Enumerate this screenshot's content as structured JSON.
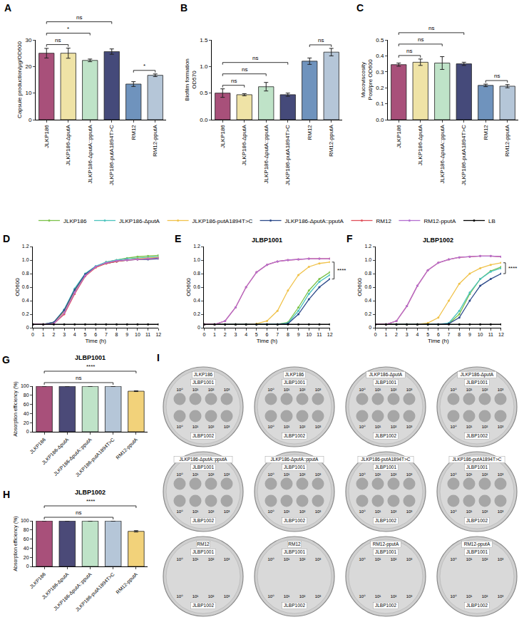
{
  "chart_data": [
    {
      "panel": "A",
      "type": "bar",
      "ylabel": "Capsule production/μg/OD600",
      "categories": [
        "JLKP186",
        "JLKP186-ΔputA",
        "JLKP186-ΔputA::pputA",
        "JLKP186-putA1894T>C",
        "RM12",
        "RM12-pputA"
      ],
      "values": [
        25.0,
        25.0,
        22.3,
        25.6,
        13.4,
        16.7
      ],
      "error": [
        1.8,
        1.9,
        0.5,
        1.0,
        0.9,
        0.5
      ],
      "colors": [
        "#a8507a",
        "#efe3a6",
        "#bfe3c8",
        "#454a7a",
        "#6f93bd",
        "#b5c6d8"
      ],
      "ylim": [
        0,
        30
      ],
      "yticks": [
        0,
        10,
        20,
        30
      ],
      "significance": [
        {
          "groups": [
            "JLKP186",
            "JLKP186-ΔputA"
          ],
          "label": "ns"
        },
        {
          "groups": [
            "JLKP186",
            "JLKP186-ΔputA::pputA"
          ],
          "label": "*"
        },
        {
          "groups": [
            "JLKP186",
            "JLKP186-putA1894T>C"
          ],
          "label": "ns"
        },
        {
          "groups": [
            "RM12",
            "RM12-pputA"
          ],
          "label": "*"
        }
      ]
    },
    {
      "panel": "B",
      "type": "bar",
      "ylabel": [
        "Biofilm formation",
        "OD570"
      ],
      "categories": [
        "JLKP186",
        "JLKP186-ΔputA",
        "JLKP186-ΔputA::pputA",
        "JLKP186-putA1894T>C",
        "RM12",
        "RM12-pputA"
      ],
      "values": [
        0.5,
        0.47,
        0.62,
        0.47,
        1.1,
        1.27
      ],
      "error": [
        0.08,
        0.02,
        0.08,
        0.03,
        0.06,
        0.07
      ],
      "colors": [
        "#a8507a",
        "#efe3a6",
        "#bfe3c8",
        "#454a7a",
        "#6f93bd",
        "#b5c6d8"
      ],
      "ylim": [
        0,
        1.5
      ],
      "yticks": [
        {
          "value": 0,
          "label": "0.0"
        },
        0.5,
        {
          "value": 1,
          "label": "1.0"
        },
        1.5
      ],
      "significance": [
        {
          "groups": [
            "JLKP186",
            "JLKP186-ΔputA"
          ],
          "label": "ns"
        },
        {
          "groups": [
            "JLKP186",
            "JLKP186-ΔputA::pputA"
          ],
          "label": "ns"
        },
        {
          "groups": [
            "JLKP186",
            "JLKP186-putA1894T>C"
          ],
          "label": "ns"
        },
        {
          "groups": [
            "RM12",
            "RM12-pputA"
          ],
          "label": "ns"
        }
      ]
    },
    {
      "panel": "C",
      "type": "bar",
      "ylabel": [
        "Mucoviscosity",
        "Post/pre OD600"
      ],
      "categories": [
        "JLKP186",
        "JLKP186-ΔputA",
        "JLKP186-ΔputA::pputA",
        "JLKP186-putA1894T>C",
        "RM12",
        "RM12-pputA"
      ],
      "values": [
        0.345,
        0.36,
        0.355,
        0.35,
        0.215,
        0.21
      ],
      "error": [
        0.01,
        0.02,
        0.04,
        0.01,
        0.008,
        0.01
      ],
      "colors": [
        "#a8507a",
        "#efe3a6",
        "#bfe3c8",
        "#454a7a",
        "#6f93bd",
        "#b5c6d8"
      ],
      "ylim": [
        0,
        0.5
      ],
      "yticks": [
        {
          "value": 0,
          "label": "0.0"
        },
        0.1,
        0.2,
        0.3,
        0.4,
        0.5
      ],
      "significance": [
        {
          "groups": [
            "JLKP186",
            "JLKP186-ΔputA"
          ],
          "label": "ns"
        },
        {
          "groups": [
            "JLKP186",
            "JLKP186-ΔputA::pputA"
          ],
          "label": "ns"
        },
        {
          "groups": [
            "JLKP186",
            "JLKP186-putA1894T>C"
          ],
          "label": "ns"
        },
        {
          "groups": [
            "RM12",
            "RM12-pputA"
          ],
          "label": "ns"
        }
      ]
    },
    {
      "panel": "D",
      "type": "line",
      "xlabel": "Time (h)",
      "ylabel": "OD600",
      "x": [
        0,
        1,
        2,
        3,
        4,
        5,
        6,
        7,
        8,
        9,
        10,
        11,
        12
      ],
      "xlim": [
        0,
        12
      ],
      "xticks": [
        0,
        1,
        2,
        3,
        4,
        5,
        6,
        7,
        8,
        9,
        10,
        11,
        12
      ],
      "ylim": [
        0,
        1.2
      ],
      "yticks": [
        0,
        0.2,
        0.4,
        0.6,
        0.8,
        {
          "value": 1,
          "label": "1.0"
        },
        1.2
      ],
      "series": [
        {
          "name": "JLKP186",
          "color": "#7cc24a",
          "values": [
            0.05,
            0.05,
            0.08,
            0.25,
            0.55,
            0.78,
            0.9,
            0.97,
            1.0,
            1.03,
            1.05,
            1.06,
            1.07
          ]
        },
        {
          "name": "JLKP186-ΔputA",
          "color": "#4cc3bd",
          "values": [
            0.05,
            0.05,
            0.08,
            0.27,
            0.58,
            0.8,
            0.91,
            0.97,
            1.0,
            1.02,
            1.03,
            1.04,
            1.05
          ]
        },
        {
          "name": "JLKP186-putA1894T>C",
          "color": "#f0c24a",
          "values": [
            0.05,
            0.05,
            0.07,
            0.24,
            0.53,
            0.77,
            0.89,
            0.95,
            0.98,
            1.0,
            1.02,
            1.03,
            1.04
          ]
        },
        {
          "name": "JLKP186-ΔputA::pputA",
          "color": "#2d4a8a",
          "values": [
            0.05,
            0.05,
            0.08,
            0.26,
            0.56,
            0.79,
            0.9,
            0.95,
            0.98,
            1.0,
            1.01,
            1.01,
            1.02
          ]
        },
        {
          "name": "RM12",
          "color": "#e0505a",
          "values": [
            0.05,
            0.05,
            0.06,
            0.2,
            0.5,
            0.76,
            0.89,
            0.95,
            0.98,
            1.0,
            1.01,
            1.02,
            1.03
          ]
        },
        {
          "name": "RM12-pputA",
          "color": "#b36fd0",
          "values": [
            0.05,
            0.05,
            0.06,
            0.22,
            0.52,
            0.77,
            0.9,
            0.96,
            0.99,
            1.0,
            1.01,
            1.02,
            1.03
          ]
        },
        {
          "name": "LB",
          "color": "#000000",
          "values": [
            0.05,
            0.05,
            0.05,
            0.05,
            0.05,
            0.05,
            0.05,
            0.05,
            0.05,
            0.05,
            0.05,
            0.05,
            0.05
          ]
        }
      ]
    },
    {
      "panel": "E",
      "type": "line",
      "title": "JLBP1001",
      "xlabel": "Time (h)",
      "ylabel": "OD600",
      "legend": "top",
      "x": [
        0,
        1,
        2,
        3,
        4,
        5,
        6,
        7,
        8,
        9,
        10,
        11,
        12
      ],
      "xlim": [
        0,
        12
      ],
      "xticks": [
        0,
        1,
        2,
        3,
        4,
        5,
        6,
        7,
        8,
        9,
        10,
        11,
        12
      ],
      "ylim": [
        0,
        1.2
      ],
      "yticks": [
        0,
        0.2,
        0.4,
        0.6,
        0.8,
        {
          "value": 1,
          "label": "1.0"
        },
        1.2
      ],
      "series": [
        {
          "name": "JLKP186",
          "color": "#7cc24a",
          "values": [
            0.05,
            0.05,
            0.05,
            0.05,
            0.05,
            0.05,
            0.05,
            0.05,
            0.08,
            0.3,
            0.55,
            0.72,
            0.82
          ]
        },
        {
          "name": "JLKP186-ΔputA",
          "color": "#4cc3bd",
          "values": [
            0.05,
            0.05,
            0.05,
            0.05,
            0.05,
            0.05,
            0.05,
            0.05,
            0.07,
            0.25,
            0.5,
            0.68,
            0.78
          ]
        },
        {
          "name": "JLKP186-putA1894T>C",
          "color": "#f0c24a",
          "values": [
            0.05,
            0.05,
            0.05,
            0.05,
            0.05,
            0.06,
            0.1,
            0.25,
            0.55,
            0.78,
            0.9,
            0.95,
            0.97
          ]
        },
        {
          "name": "JLKP186-ΔputA::pputA",
          "color": "#2d4a8a",
          "values": [
            0.05,
            0.05,
            0.05,
            0.05,
            0.05,
            0.05,
            0.05,
            0.05,
            0.06,
            0.2,
            0.42,
            0.6,
            0.72
          ]
        },
        {
          "name": "RM12",
          "color": "#e0505a",
          "values": [
            0.05,
            0.05,
            0.1,
            0.3,
            0.6,
            0.82,
            0.93,
            0.98,
            1.0,
            1.01,
            1.02,
            1.02,
            1.02
          ]
        },
        {
          "name": "RM12-pputA",
          "color": "#b36fd0",
          "values": [
            0.05,
            0.05,
            0.1,
            0.3,
            0.6,
            0.82,
            0.93,
            0.98,
            1.0,
            1.01,
            1.02,
            1.02,
            1.02
          ]
        },
        {
          "name": "LB",
          "color": "#000000",
          "values": [
            0.05,
            0.05,
            0.05,
            0.05,
            0.05,
            0.05,
            0.05,
            0.05,
            0.05,
            0.05,
            0.05,
            0.05,
            0.05
          ]
        }
      ],
      "significance": [
        {
          "series": [
            "JLKP186-putA1894T>C",
            "JLKP186-ΔputA::pputA"
          ],
          "label": "****"
        }
      ]
    },
    {
      "panel": "F",
      "type": "line",
      "title": "JLBP1002",
      "xlabel": "Time (h)",
      "ylabel": "OD600",
      "x": [
        0,
        1,
        2,
        3,
        4,
        5,
        6,
        7,
        8,
        9,
        10,
        11,
        12
      ],
      "xlim": [
        0,
        12
      ],
      "xticks": [
        0,
        1,
        2,
        3,
        4,
        5,
        6,
        7,
        8,
        9,
        10,
        11,
        12
      ],
      "ylim": [
        0,
        1.2
      ],
      "yticks": [
        0,
        0.2,
        0.4,
        0.6,
        0.8,
        {
          "value": 1,
          "label": "1.0"
        },
        1.2
      ],
      "series": [
        {
          "name": "JLKP186",
          "color": "#7cc24a",
          "values": [
            0.05,
            0.05,
            0.05,
            0.05,
            0.05,
            0.05,
            0.05,
            0.06,
            0.2,
            0.5,
            0.72,
            0.84,
            0.9
          ]
        },
        {
          "name": "JLKP186-ΔputA",
          "color": "#4cc3bd",
          "values": [
            0.05,
            0.05,
            0.05,
            0.05,
            0.05,
            0.05,
            0.05,
            0.07,
            0.25,
            0.52,
            0.72,
            0.83,
            0.88
          ]
        },
        {
          "name": "JLKP186-putA1894T>C",
          "color": "#f0c24a",
          "values": [
            0.05,
            0.05,
            0.05,
            0.05,
            0.05,
            0.07,
            0.15,
            0.4,
            0.65,
            0.8,
            0.88,
            0.93,
            0.96
          ]
        },
        {
          "name": "JLKP186-ΔputA::pputA",
          "color": "#2d4a8a",
          "values": [
            0.05,
            0.05,
            0.05,
            0.05,
            0.05,
            0.05,
            0.05,
            0.06,
            0.15,
            0.4,
            0.62,
            0.72,
            0.8
          ]
        },
        {
          "name": "RM12",
          "color": "#e0505a",
          "values": [
            0.05,
            0.05,
            0.1,
            0.32,
            0.62,
            0.85,
            0.96,
            1.01,
            1.04,
            1.05,
            1.06,
            1.06,
            1.05
          ]
        },
        {
          "name": "RM12-pputA",
          "color": "#b36fd0",
          "values": [
            0.05,
            0.05,
            0.1,
            0.32,
            0.62,
            0.85,
            0.96,
            1.01,
            1.04,
            1.05,
            1.06,
            1.06,
            1.05
          ]
        },
        {
          "name": "LB",
          "color": "#000000",
          "values": [
            0.05,
            0.05,
            0.05,
            0.05,
            0.05,
            0.05,
            0.05,
            0.05,
            0.05,
            0.05,
            0.05,
            0.05,
            0.05
          ]
        }
      ],
      "significance": [
        {
          "series": [
            "JLKP186-putA1894T>C",
            "JLKP186-ΔputA::pputA"
          ],
          "label": "****"
        }
      ]
    },
    {
      "panel": "G",
      "type": "bar",
      "title": "JLBP1001",
      "ylabel": "Absorption efficiency (%)",
      "categories": [
        "JLKP186",
        "JLKP186-ΔputA",
        "JLKP186-ΔputA::pputA",
        "JLKP186-putA1894T>C",
        "RM12-pputA"
      ],
      "values": [
        99.9,
        99.8,
        99.7,
        99.7,
        89.0
      ],
      "error": [
        0.1,
        0.1,
        0.2,
        0.2,
        0.8
      ],
      "colors": [
        "#a8507a",
        "#4b4a78",
        "#bfe3c8",
        "#b5c6d8",
        "#f2d27a"
      ],
      "ylim": [
        0,
        100
      ],
      "yticks": [
        0,
        20,
        40,
        60,
        80,
        100
      ],
      "significance": [
        {
          "groups": [
            "JLKP186",
            "JLKP186-putA1894T>C"
          ],
          "label": "ns"
        },
        {
          "groups": [
            "JLKP186",
            "RM12-pputA"
          ],
          "label": "****"
        }
      ]
    },
    {
      "panel": "H",
      "type": "bar",
      "title": "JLBP1002",
      "ylabel": "Absorption efficiency (%)",
      "categories": [
        "JLKP186",
        "JLKP186-ΔputA",
        "JLKP186-ΔputA::pputA",
        "JLKP186-putA1894T>C",
        "RM12-pputA"
      ],
      "values": [
        99.9,
        99.7,
        99.5,
        99.6,
        77.0
      ],
      "error": [
        0.1,
        0.2,
        0.4,
        0.2,
        1.5
      ],
      "colors": [
        "#a8507a",
        "#4b4a78",
        "#bfe3c8",
        "#b5c6d8",
        "#f2d27a"
      ],
      "ylim": [
        0,
        100
      ],
      "yticks": [
        0,
        20,
        40,
        60,
        80,
        100
      ],
      "significance": [
        {
          "groups": [
            "JLKP186",
            "JLKP186-putA1894T>C"
          ],
          "label": "ns"
        },
        {
          "groups": [
            "JLKP186",
            "RM12-pputA"
          ],
          "label": "****"
        }
      ]
    }
  ],
  "panel_I": {
    "panel": "I",
    "dilutions": [
      "10⁰",
      "10¹",
      "10²",
      "10³"
    ],
    "plates": [
      {
        "strain": "JLKP186",
        "top": "JLBP1001",
        "bottom": "JLBP1002",
        "lysis": true
      },
      {
        "strain": "JLKP186",
        "top": "JLBP1001",
        "bottom": "JLBP1002",
        "lysis": true
      },
      {
        "strain": "JLKP186-ΔputA",
        "top": "JLBP1001",
        "bottom": "JLBP1002",
        "lysis": true
      },
      {
        "strain": "JLKP186-ΔputA",
        "top": "JLBP1001",
        "bottom": "JLBP1002",
        "lysis": true
      },
      {
        "strain": "JLKP186-ΔputA::pputA",
        "top": "JLBP1001",
        "bottom": "JLBP1002",
        "lysis": true
      },
      {
        "strain": "JLKP186-ΔputA::pputA",
        "top": "JLBP1001",
        "bottom": "JLBP1002",
        "lysis": true
      },
      {
        "strain": "JLKP186-putA1894T>C",
        "top": "JLBP1001",
        "bottom": "JLBP1002",
        "lysis": true
      },
      {
        "strain": "JLKP186-putA1894T>C",
        "top": "JLBP1001",
        "bottom": "JLBP1002",
        "lysis": true
      },
      {
        "strain": "RM12",
        "top": "JLBP1001",
        "bottom": "JLBP1002",
        "lysis": false
      },
      {
        "strain": "RM12",
        "top": "JLBP1001",
        "bottom": "JLBP1002",
        "lysis": false
      },
      {
        "strain": "RM12-pputA",
        "top": "JLBP1001",
        "bottom": "JLBP1002",
        "lysis": false
      },
      {
        "strain": "RM12-pputA",
        "top": "JLBP1001",
        "bottom": "JLBP1002",
        "lysis": false
      }
    ]
  }
}
